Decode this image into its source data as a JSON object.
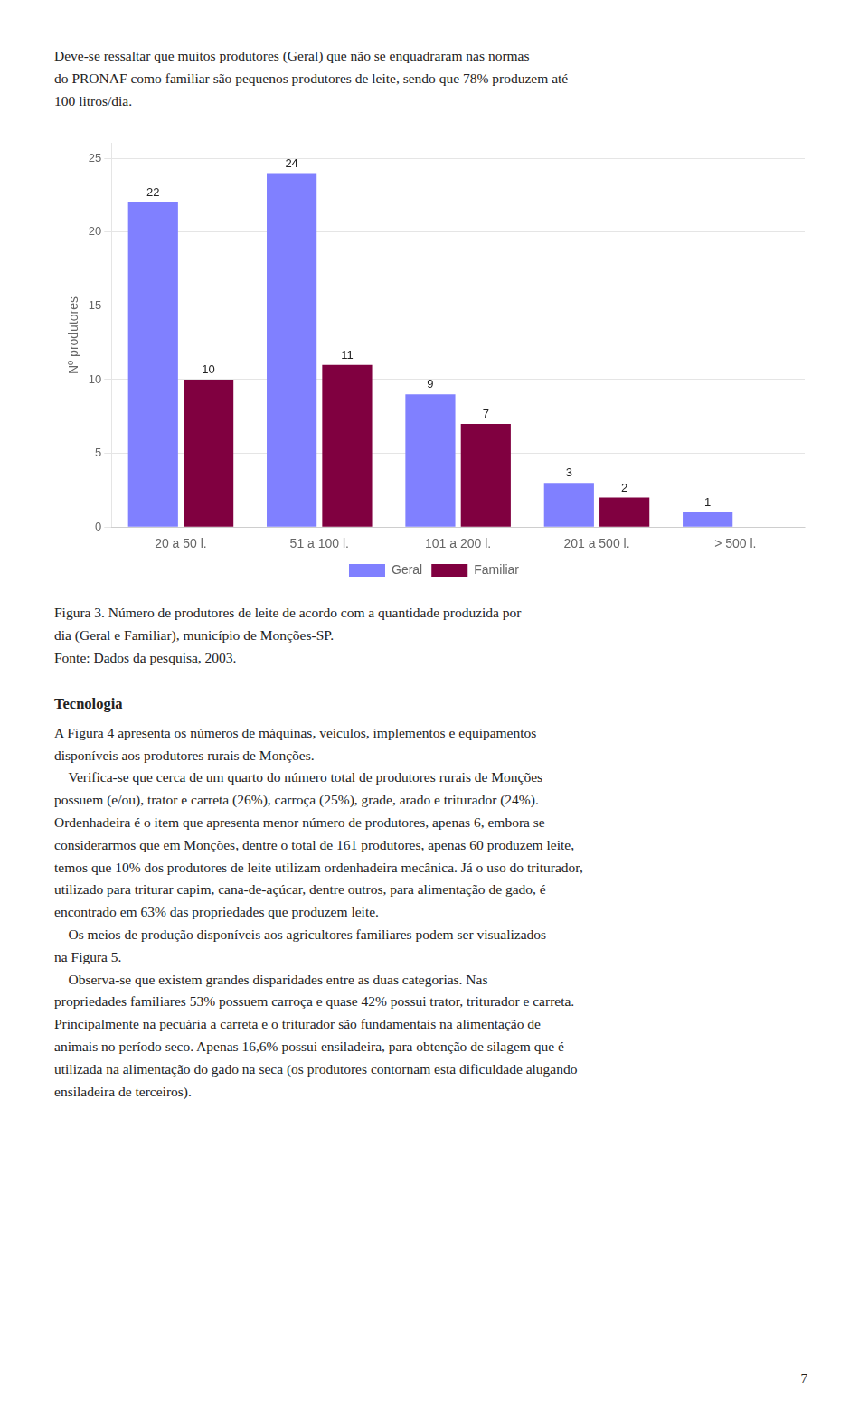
{
  "chart_data": {
    "type": "bar",
    "categories": [
      "20 a 50 l.",
      "51 a 100 l.",
      "101 a 200 l.",
      "201 a 500 l.",
      "> 500 l."
    ],
    "series": [
      {
        "name": "Geral",
        "color": "#8080FF",
        "values": [
          22,
          24,
          9,
          3,
          1
        ]
      },
      {
        "name": "Familiar",
        "color": "#800040",
        "values": [
          10,
          11,
          7,
          2,
          0
        ],
        "value_labels": [
          "10",
          "11",
          "7",
          "2",
          null
        ]
      }
    ],
    "ylabel": "Nº produtores",
    "ylim": [
      0,
      26
    ],
    "yticks": [
      0,
      5,
      10,
      15,
      20,
      25
    ],
    "grid": true,
    "legend": "bottom",
    "data_labels": true
  },
  "text_paragraph1": "Deve-se ressaltar que muitos produtores (Geral) que não se enquadraram nas normas\ndo PRONAF como familiar são pequenos produtores de leite, sendo que 78% produzem até\n100 litros/dia.",
  "figure_caption": "Figura 3. Número de produtores de leite de acordo com a quantidade produzida por\ndia (Geral e Familiar), município de Monções-SP.\nFonte: Dados da pesquisa, 2003.",
  "text_tecnologia_title": "Tecnologia",
  "text_tecnologia_body": "A Figura 4 apresenta os números de máquinas, veículos, implementos e equipamentos\ndisponíveis aos produtores rurais de Monções.\n    Verifica-se que cerca de um quarto do número total de produtores rurais de Monções\npossuem (e/ou), trator e carreta (26%), carroça (25%), grade, arado e triturador (24%).\nOrdenhadeira é o item que apresenta menor número de produtores, apenas 6, embora se\nconsiderarmos que em Monções, dentre o total de 161 produtores, apenas 60 produzem leite,\ntemos que 10% dos produtores de leite utilizam ordenhadeira mecânica. Já o uso do triturador,\nutilizado para triturar capim, cana-de-açúcar, dentre outros, para alimentação de gado, é\nencontrado em 63% das propriedades que produzem leite.\n    Os meios de produção disponíveis aos agricultores familiares podem ser visualizados\nna Figura 5.\n    Observa-se que existem grandes disparidades entre as duas categorias. Nas\npropriedades familiares 53% possuem carroça e quase 42% possui trator, triturador e carreta.\nPrincipalmente na pecuária a carreta e o triturador são fundamentais na alimentação de\nanimais no período seco. Apenas 16,6% possui ensiladeira, para obtenção de silagem que é\nutilizada na alimentação do gado na seca (os produtores contornam esta dificuldade alugando\nensiladeira de terceiros).",
  "page_number": "7"
}
